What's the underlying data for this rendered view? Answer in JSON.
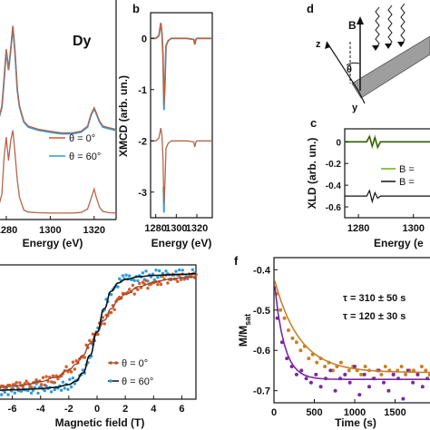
{
  "colors": {
    "theta0": "#d45a2a",
    "theta60": "#2f9ad6",
    "model": "#b5654a",
    "fit_black": "#111111",
    "tau1": "#c8802a",
    "tau2": "#7a2aa0",
    "xld_green": "#8bc34a",
    "sample_gray": "#9e9e9e"
  },
  "chart_data": [
    {
      "panel": "",
      "type": "line",
      "element_label": "Dy",
      "xlabel": "Energy (eV)",
      "ylabel": "",
      "xlim": [
        1273,
        1330
      ],
      "x_ticks": [
        "1280",
        "1300",
        "1320"
      ],
      "legend": [
        {
          "name": "θ = 0°",
          "color": "theta0"
        },
        {
          "name": "θ = 60°",
          "color": "theta60"
        }
      ],
      "series": [
        {
          "name": "θ = 0° (exp)",
          "x": [
            1273,
            1276,
            1278,
            1279,
            1280,
            1281,
            1282,
            1283,
            1284,
            1285,
            1286,
            1288,
            1290,
            1295,
            1300,
            1305,
            1310,
            1314,
            1317,
            1318.5,
            1320,
            1321,
            1322.5,
            1324,
            1327,
            1330
          ],
          "y": [
            2.55,
            2.7,
            3.2,
            4.0,
            4.9,
            4.3,
            4.9,
            5.6,
            4.8,
            3.7,
            3.2,
            2.75,
            2.6,
            2.5,
            2.45,
            2.4,
            2.4,
            2.45,
            2.6,
            2.95,
            3.15,
            3.0,
            2.75,
            2.6,
            2.55,
            2.5
          ]
        },
        {
          "name": "θ = 0° (model)",
          "x": [
            1273,
            1276,
            1278,
            1279,
            1280,
            1281,
            1282,
            1283,
            1284,
            1285,
            1286,
            1288,
            1290,
            1295,
            1300,
            1305,
            1310,
            1314,
            1317,
            1318.5,
            1320,
            1321,
            1322.5,
            1324,
            1327,
            1330
          ],
          "y": [
            0.05,
            0.1,
            0.6,
            1.7,
            2.3,
            1.6,
            2.2,
            2.5,
            1.8,
            1.0,
            0.5,
            0.12,
            0.06,
            0.04,
            0.03,
            0.03,
            0.03,
            0.05,
            0.15,
            0.45,
            0.75,
            0.5,
            0.2,
            0.08,
            0.04,
            0.03
          ]
        }
      ]
    },
    {
      "panel": "b",
      "type": "line",
      "xlabel": "Energy (eV)",
      "ylabel": "XMCD (arb. un.)",
      "xlim": [
        1275,
        1335
      ],
      "ylim": [
        -3.5,
        0.5
      ],
      "x_ticks": [
        "1280",
        "1300",
        "1320"
      ],
      "y_ticks": [
        "0",
        "-1",
        "-2",
        "-3"
      ],
      "series": [
        {
          "name": "θ = 0°",
          "x": [
            1275,
            1280,
            1283,
            1285,
            1286,
            1287,
            1288,
            1289,
            1290,
            1292,
            1295,
            1300,
            1310,
            1317,
            1318,
            1319,
            1320,
            1325,
            1335
          ],
          "y": [
            0.0,
            0.0,
            0.05,
            0.3,
            0.1,
            -0.3,
            -1.3,
            -0.8,
            -0.15,
            -0.05,
            0.0,
            0.0,
            0.0,
            -0.02,
            -0.12,
            -0.03,
            0.0,
            0.0,
            0.0
          ]
        },
        {
          "name": "θ = 60°",
          "x": [
            1275,
            1280,
            1283,
            1285,
            1286,
            1287,
            1288,
            1289,
            1290,
            1292,
            1295,
            1300,
            1310,
            1317,
            1318,
            1319,
            1320,
            1325,
            1335
          ],
          "y": [
            0.0,
            0.0,
            0.05,
            0.3,
            0.1,
            -0.3,
            -1.4,
            -0.85,
            -0.15,
            -0.05,
            0.0,
            0.0,
            0.0,
            -0.02,
            -0.12,
            -0.03,
            0.0,
            0.0,
            0.0
          ]
        },
        {
          "name": "θ = 0° model",
          "x": [
            1275,
            1280,
            1283,
            1285,
            1286,
            1287,
            1288,
            1289,
            1290,
            1292,
            1295,
            1300,
            1310,
            1317,
            1318,
            1319,
            1320,
            1325,
            1335
          ],
          "y": [
            -2.0,
            -2.0,
            -1.95,
            -1.75,
            -1.9,
            -2.3,
            -3.25,
            -2.8,
            -2.15,
            -2.05,
            -2.0,
            -2.0,
            -2.0,
            -2.02,
            -2.12,
            -2.03,
            -2.0,
            -2.0,
            -2.0
          ]
        },
        {
          "name": "θ = 60° model",
          "x": [
            1287.5,
            1288,
            1288.5
          ],
          "y": [
            -2.9,
            -3.4,
            -2.9
          ]
        }
      ]
    },
    {
      "panel": "c",
      "type": "line",
      "xlabel": "Energy (e",
      "ylabel": "XLD (arb. un.)",
      "xlim": [
        1275,
        1310
      ],
      "ylim": [
        -0.7,
        0.12
      ],
      "x_ticks": [
        "1280",
        "1300"
      ],
      "y_ticks": [
        "0",
        "-0.2",
        "-0.4",
        "-0.6"
      ],
      "legend": [
        {
          "name": "B =",
          "color": "xld_green"
        },
        {
          "name": "B =",
          "color": "fit_black"
        }
      ],
      "series": [
        {
          "name": "XLD exp",
          "x": [
            1275,
            1280,
            1283,
            1284,
            1285,
            1286,
            1287,
            1288,
            1290,
            1295,
            1300,
            1305,
            1310
          ],
          "y": [
            0.0,
            0.0,
            0.0,
            0.05,
            -0.04,
            0.04,
            -0.05,
            0.0,
            0.0,
            0.0,
            0.0,
            0.0,
            0.0
          ]
        },
        {
          "name": "XLD model",
          "x": [
            1275,
            1280,
            1283,
            1284,
            1285,
            1286,
            1287,
            1288,
            1290,
            1295,
            1300,
            1305,
            1310
          ],
          "y": [
            -0.5,
            -0.5,
            -0.5,
            -0.45,
            -0.55,
            -0.47,
            -0.52,
            -0.5,
            -0.5,
            -0.5,
            -0.5,
            -0.5,
            -0.5
          ]
        }
      ]
    },
    {
      "panel": "",
      "type": "scatter",
      "xlabel": "Magnetic field (T)",
      "ylabel": "",
      "xlim": [
        -7,
        7
      ],
      "ylim": [
        -1.15,
        1.15
      ],
      "x_ticks": [
        "-6",
        "-4",
        "-2",
        "0",
        "2",
        "4",
        "6"
      ],
      "legend": [
        {
          "name": "θ = 0°",
          "color": "theta0"
        },
        {
          "name": "θ = 60°",
          "color": "fit_black"
        }
      ],
      "series": [
        {
          "name": "θ = 0° fit",
          "x": [
            -7,
            -6,
            -5,
            -4,
            -3,
            -2,
            -1.5,
            -1,
            -0.5,
            0,
            0.5,
            1,
            1.5,
            2,
            3,
            4,
            5,
            6,
            7
          ],
          "y": [
            -0.95,
            -0.93,
            -0.9,
            -0.85,
            -0.78,
            -0.65,
            -0.55,
            -0.4,
            -0.2,
            0,
            0.2,
            0.4,
            0.55,
            0.65,
            0.78,
            0.85,
            0.9,
            0.93,
            0.95
          ]
        },
        {
          "name": "θ = 60° fit",
          "x": [
            -7,
            -6,
            -5,
            -4,
            -3,
            -2,
            -1.5,
            -1,
            -0.5,
            0,
            0.5,
            1,
            1.5,
            2,
            3,
            4,
            5,
            6,
            7
          ],
          "y": [
            -1.0,
            -0.99,
            -0.98,
            -0.97,
            -0.95,
            -0.9,
            -0.84,
            -0.7,
            -0.4,
            0,
            0.4,
            0.7,
            0.84,
            0.9,
            0.95,
            0.97,
            0.98,
            0.99,
            1.0
          ]
        }
      ]
    },
    {
      "panel": "f",
      "type": "scatter",
      "xlabel": "Time (s)",
      "ylabel": "M/M_sat",
      "ylabel_main": "M/M",
      "ylabel_sub": "sat",
      "xlim": [
        0,
        2000
      ],
      "ylim": [
        -0.73,
        -0.37
      ],
      "x_ticks": [
        "0",
        "500",
        "1000",
        "1500",
        "2"
      ],
      "y_ticks": [
        "-0.4",
        "-0.5",
        "-0.6",
        "-0.7"
      ],
      "annotations": [
        "τ = 310 ± 50 s",
        "τ = 120 ± 30 s"
      ],
      "series": [
        {
          "name": "τ = 310 ± 50 s",
          "x": [
            30,
            80,
            130,
            180,
            230,
            280,
            330,
            380,
            430,
            480,
            530,
            580,
            630,
            680,
            730,
            780,
            830,
            880,
            930,
            980,
            1030,
            1080,
            1130,
            1180,
            1230,
            1280,
            1330,
            1380,
            1430,
            1480,
            1530,
            1580,
            1630,
            1680,
            1730,
            1780,
            1830,
            1880,
            1930,
            1980
          ],
          "y": [
            -0.46,
            -0.5,
            -0.52,
            -0.55,
            -0.57,
            -0.58,
            -0.6,
            -0.59,
            -0.62,
            -0.61,
            -0.63,
            -0.62,
            -0.64,
            -0.63,
            -0.65,
            -0.64,
            -0.63,
            -0.66,
            -0.65,
            -0.64,
            -0.65,
            -0.66,
            -0.64,
            -0.65,
            -0.67,
            -0.65,
            -0.66,
            -0.64,
            -0.65,
            -0.66,
            -0.65,
            -0.64,
            -0.66,
            -0.65,
            -0.65,
            -0.66,
            -0.64,
            -0.65,
            -0.66,
            -0.65
          ]
        },
        {
          "name": "τ = 120 ± 30 s",
          "x": [
            40,
            100,
            160,
            220,
            280,
            340,
            400,
            460,
            520,
            580,
            640,
            700,
            760,
            820,
            880,
            940,
            1000,
            1060,
            1120,
            1180,
            1240,
            1300,
            1360,
            1420,
            1480,
            1540,
            1600,
            1660,
            1720,
            1780,
            1840,
            1900,
            1960
          ],
          "y": [
            -0.52,
            -0.58,
            -0.62,
            -0.64,
            -0.66,
            -0.65,
            -0.67,
            -0.68,
            -0.66,
            -0.69,
            -0.67,
            -0.65,
            -0.7,
            -0.67,
            -0.66,
            -0.68,
            -0.64,
            -0.71,
            -0.66,
            -0.69,
            -0.67,
            -0.65,
            -0.68,
            -0.7,
            -0.66,
            -0.67,
            -0.72,
            -0.65,
            -0.68,
            -0.66,
            -0.69,
            -0.67,
            -0.66
          ]
        }
      ]
    }
  ],
  "panel_d": {
    "label": "d",
    "axis_z": "z",
    "axis_y": "y",
    "field": "B",
    "angle": "θ"
  }
}
